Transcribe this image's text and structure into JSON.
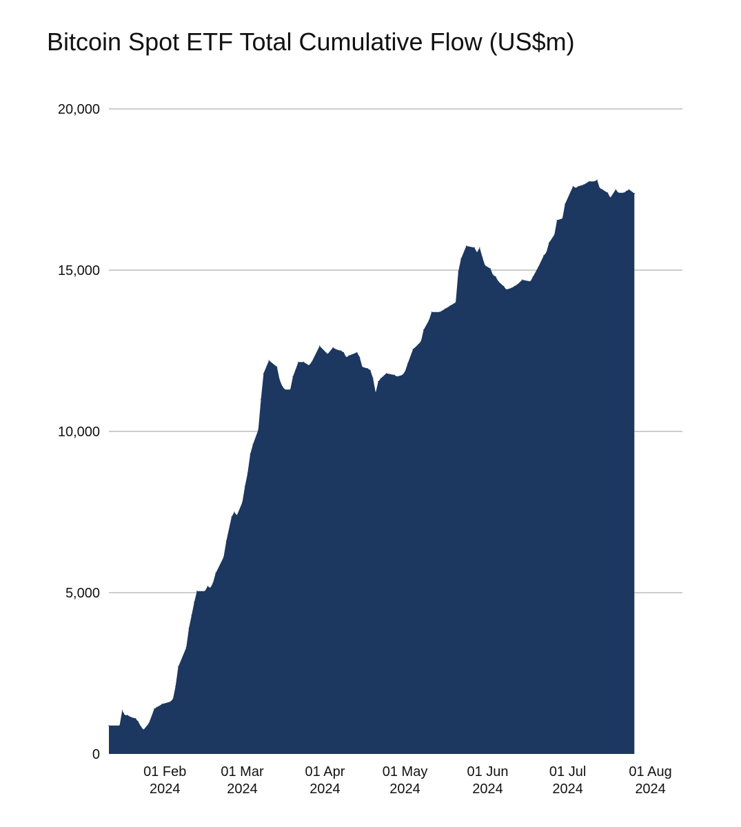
{
  "chart_data": {
    "type": "area",
    "title": "Bitcoin Spot ETF Total Cumulative Flow (US$m)",
    "xlabel": "",
    "ylabel": "",
    "ylim": [
      0,
      20000
    ],
    "xlim": [
      "2024-01-11",
      "2024-08-13"
    ],
    "grid": true,
    "legend": "none",
    "color": "#1c3760",
    "gridcolor": "#cccccc",
    "yticks": [
      {
        "value": 0,
        "label": "0"
      },
      {
        "value": 5000,
        "label": "5,000"
      },
      {
        "value": 10000,
        "label": "10,000"
      },
      {
        "value": 15000,
        "label": "15,000"
      },
      {
        "value": 20000,
        "label": "20,000"
      }
    ],
    "xticks": [
      {
        "date": "2024-02-01",
        "line1": "01 Feb",
        "line2": "2024"
      },
      {
        "date": "2024-03-01",
        "line1": "01 Mar",
        "line2": "2024"
      },
      {
        "date": "2024-04-01",
        "line1": "01 Apr",
        "line2": "2024"
      },
      {
        "date": "2024-05-01",
        "line1": "01 May",
        "line2": "2024"
      },
      {
        "date": "2024-06-01",
        "line1": "01 Jun",
        "line2": "2024"
      },
      {
        "date": "2024-07-01",
        "line1": "01 Jul",
        "line2": "2024"
      },
      {
        "date": "2024-08-01",
        "line1": "01 Aug",
        "line2": "2024"
      }
    ],
    "series": [
      {
        "points": [
          [
            "2024-01-11",
            880
          ],
          [
            "2024-01-15",
            880
          ],
          [
            "2024-01-16",
            1350
          ],
          [
            "2024-01-17",
            1200
          ],
          [
            "2024-01-18",
            1200
          ],
          [
            "2024-01-19",
            1150
          ],
          [
            "2024-01-21",
            1100
          ],
          [
            "2024-01-22",
            1000
          ],
          [
            "2024-01-23",
            850
          ],
          [
            "2024-01-24",
            750
          ],
          [
            "2024-01-26",
            950
          ],
          [
            "2024-01-28",
            1400
          ],
          [
            "2024-01-29",
            1450
          ],
          [
            "2024-01-31",
            1550
          ],
          [
            "2024-02-03",
            1620
          ],
          [
            "2024-02-04",
            1700
          ],
          [
            "2024-02-05",
            2100
          ],
          [
            "2024-02-06",
            2700
          ],
          [
            "2024-02-09",
            3300
          ],
          [
            "2024-02-10",
            3900
          ],
          [
            "2024-02-11",
            4300
          ],
          [
            "2024-02-12",
            4700
          ],
          [
            "2024-02-13",
            5050
          ],
          [
            "2024-02-16",
            5050
          ],
          [
            "2024-02-17",
            5200
          ],
          [
            "2024-02-18",
            5150
          ],
          [
            "2024-02-19",
            5300
          ],
          [
            "2024-02-20",
            5600
          ],
          [
            "2024-02-23",
            6100
          ],
          [
            "2024-02-24",
            6600
          ],
          [
            "2024-02-26",
            7350
          ],
          [
            "2024-02-27",
            7500
          ],
          [
            "2024-02-28",
            7400
          ],
          [
            "2024-03-01",
            7800
          ],
          [
            "2024-03-02",
            8300
          ],
          [
            "2024-03-03",
            8700
          ],
          [
            "2024-03-04",
            9300
          ],
          [
            "2024-03-05",
            9600
          ],
          [
            "2024-03-07",
            10050
          ],
          [
            "2024-03-08",
            11000
          ],
          [
            "2024-03-09",
            11800
          ],
          [
            "2024-03-11",
            12200
          ],
          [
            "2024-03-14",
            12000
          ],
          [
            "2024-03-15",
            11600
          ],
          [
            "2024-03-16",
            11400
          ],
          [
            "2024-03-17",
            11300
          ],
          [
            "2024-03-19",
            11300
          ],
          [
            "2024-03-20",
            11700
          ],
          [
            "2024-03-22",
            12150
          ],
          [
            "2024-03-24",
            12150
          ],
          [
            "2024-03-26",
            12050
          ],
          [
            "2024-03-27",
            12150
          ],
          [
            "2024-03-30",
            12650
          ],
          [
            "2024-04-02",
            12400
          ],
          [
            "2024-04-04",
            12600
          ],
          [
            "2024-04-05",
            12550
          ],
          [
            "2024-04-07",
            12500
          ],
          [
            "2024-04-08",
            12450
          ],
          [
            "2024-04-09",
            12300
          ],
          [
            "2024-04-10",
            12350
          ],
          [
            "2024-04-13",
            12450
          ],
          [
            "2024-04-14",
            12300
          ],
          [
            "2024-04-15",
            12000
          ],
          [
            "2024-04-17",
            11950
          ],
          [
            "2024-04-18",
            11900
          ],
          [
            "2024-04-19",
            11650
          ],
          [
            "2024-04-20",
            11200
          ],
          [
            "2024-04-21",
            11550
          ],
          [
            "2024-04-22",
            11650
          ],
          [
            "2024-04-24",
            11800
          ],
          [
            "2024-04-27",
            11750
          ],
          [
            "2024-04-28",
            11700
          ],
          [
            "2024-04-30",
            11750
          ],
          [
            "2024-05-01",
            11850
          ],
          [
            "2024-05-02",
            12100
          ],
          [
            "2024-05-04",
            12550
          ],
          [
            "2024-05-06",
            12700
          ],
          [
            "2024-05-07",
            12800
          ],
          [
            "2024-05-08",
            13150
          ],
          [
            "2024-05-10",
            13450
          ],
          [
            "2024-05-11",
            13700
          ],
          [
            "2024-05-14",
            13700
          ],
          [
            "2024-05-16",
            13800
          ],
          [
            "2024-05-18",
            13900
          ],
          [
            "2024-05-20",
            14000
          ],
          [
            "2024-05-21",
            14950
          ],
          [
            "2024-05-22",
            15350
          ],
          [
            "2024-05-24",
            15750
          ],
          [
            "2024-05-27",
            15700
          ],
          [
            "2024-05-28",
            15550
          ],
          [
            "2024-05-29",
            15700
          ],
          [
            "2024-05-30",
            15400
          ],
          [
            "2024-05-31",
            15150
          ],
          [
            "2024-06-02",
            15050
          ],
          [
            "2024-06-03",
            14850
          ],
          [
            "2024-06-04",
            14800
          ],
          [
            "2024-06-05",
            14650
          ],
          [
            "2024-06-07",
            14500
          ],
          [
            "2024-06-08",
            14400
          ],
          [
            "2024-06-10",
            14450
          ],
          [
            "2024-06-11",
            14500
          ],
          [
            "2024-06-12",
            14550
          ],
          [
            "2024-06-14",
            14700
          ],
          [
            "2024-06-17",
            14650
          ],
          [
            "2024-06-18",
            14800
          ],
          [
            "2024-06-20",
            15100
          ],
          [
            "2024-06-22",
            15450
          ],
          [
            "2024-06-23",
            15550
          ],
          [
            "2024-06-24",
            15850
          ],
          [
            "2024-06-26",
            16100
          ],
          [
            "2024-06-27",
            16550
          ],
          [
            "2024-06-29",
            16600
          ],
          [
            "2024-06-30",
            17050
          ],
          [
            "2024-07-03",
            17600
          ],
          [
            "2024-07-04",
            17550
          ],
          [
            "2024-07-05",
            17600
          ],
          [
            "2024-07-07",
            17650
          ],
          [
            "2024-07-09",
            17750
          ],
          [
            "2024-07-11",
            17750
          ],
          [
            "2024-07-12",
            17800
          ],
          [
            "2024-07-13",
            17550
          ],
          [
            "2024-07-14",
            17500
          ],
          [
            "2024-07-16",
            17400
          ],
          [
            "2024-07-17",
            17250
          ],
          [
            "2024-07-19",
            17500
          ],
          [
            "2024-07-20",
            17400
          ],
          [
            "2024-07-22",
            17400
          ],
          [
            "2024-07-23",
            17450
          ],
          [
            "2024-07-24",
            17500
          ],
          [
            "2024-07-26",
            17380
          ]
        ]
      }
    ]
  }
}
